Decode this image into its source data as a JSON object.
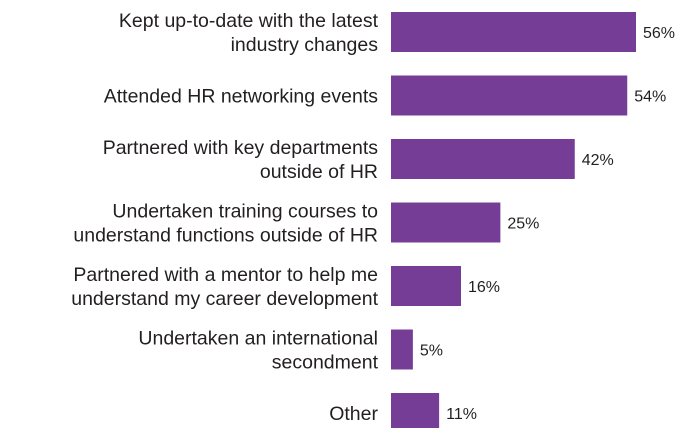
{
  "chart_data": {
    "type": "barh",
    "categories": [
      "Kept up-to-date with the latest\nindustry changes",
      "Attended HR networking events",
      "Partnered with key departments\noutside of HR",
      "Undertaken training courses to\nunderstand functions outside of HR",
      "Partnered with a mentor to help me\nunderstand my career development",
      "Undertaken an international\nsecondment",
      "Other"
    ],
    "values": [
      56,
      54,
      42,
      25,
      16,
      5,
      11
    ],
    "value_labels": [
      "56%",
      "54%",
      "42%",
      "25%",
      "16%",
      "5%",
      "11%"
    ],
    "color": "#763d97"
  }
}
